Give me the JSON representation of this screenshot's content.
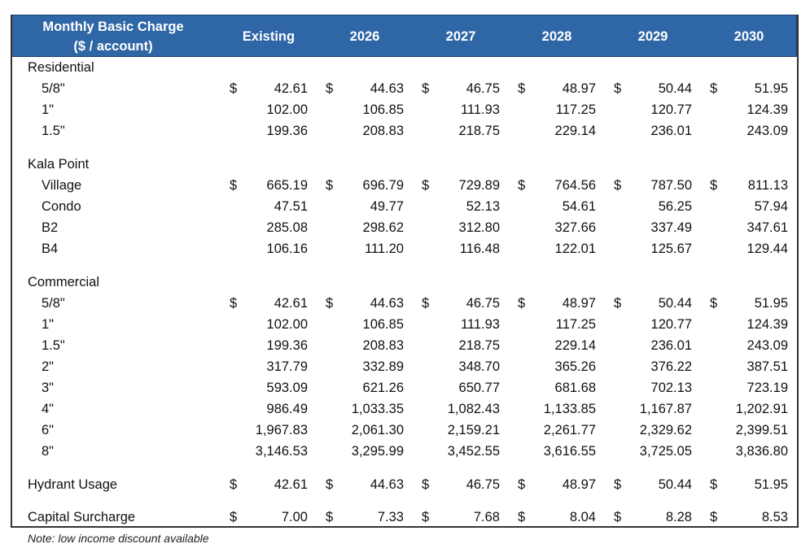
{
  "header": {
    "title_line1": "Monthly Basic Charge",
    "title_line2": "($ / account)",
    "columns": [
      "Existing",
      "2026",
      "2027",
      "2028",
      "2029",
      "2030"
    ]
  },
  "sections": [
    {
      "title": "Residential",
      "rows": [
        {
          "label": "5/8\"",
          "currency": "$",
          "values": [
            "42.61",
            "44.63",
            "46.75",
            "48.97",
            "50.44",
            "51.95"
          ]
        },
        {
          "label": "1\"",
          "currency": "",
          "values": [
            "102.00",
            "106.85",
            "111.93",
            "117.25",
            "120.77",
            "124.39"
          ]
        },
        {
          "label": "1.5\"",
          "currency": "",
          "values": [
            "199.36",
            "208.83",
            "218.75",
            "229.14",
            "236.01",
            "243.09"
          ]
        }
      ]
    },
    {
      "title": "Kala Point",
      "rows": [
        {
          "label": "Village",
          "currency": "$",
          "values": [
            "665.19",
            "696.79",
            "729.89",
            "764.56",
            "787.50",
            "811.13"
          ]
        },
        {
          "label": "Condo",
          "currency": "",
          "values": [
            "47.51",
            "49.77",
            "52.13",
            "54.61",
            "56.25",
            "57.94"
          ]
        },
        {
          "label": "B2",
          "currency": "",
          "values": [
            "285.08",
            "298.62",
            "312.80",
            "327.66",
            "337.49",
            "347.61"
          ]
        },
        {
          "label": "B4",
          "currency": "",
          "values": [
            "106.16",
            "111.20",
            "116.48",
            "122.01",
            "125.67",
            "129.44"
          ]
        }
      ]
    },
    {
      "title": "Commercial",
      "rows": [
        {
          "label": "5/8\"",
          "currency": "$",
          "values": [
            "42.61",
            "44.63",
            "46.75",
            "48.97",
            "50.44",
            "51.95"
          ]
        },
        {
          "label": "1\"",
          "currency": "",
          "values": [
            "102.00",
            "106.85",
            "111.93",
            "117.25",
            "120.77",
            "124.39"
          ]
        },
        {
          "label": "1.5\"",
          "currency": "",
          "values": [
            "199.36",
            "208.83",
            "218.75",
            "229.14",
            "236.01",
            "243.09"
          ]
        },
        {
          "label": "2\"",
          "currency": "",
          "values": [
            "317.79",
            "332.89",
            "348.70",
            "365.26",
            "376.22",
            "387.51"
          ]
        },
        {
          "label": "3\"",
          "currency": "",
          "values": [
            "593.09",
            "621.26",
            "650.77",
            "681.68",
            "702.13",
            "723.19"
          ]
        },
        {
          "label": "4\"",
          "currency": "",
          "values": [
            "986.49",
            "1,033.35",
            "1,082.43",
            "1,133.85",
            "1,167.87",
            "1,202.91"
          ]
        },
        {
          "label": "6\"",
          "currency": "",
          "values": [
            "1,967.83",
            "2,061.30",
            "2,159.21",
            "2,261.77",
            "2,329.62",
            "2,399.51"
          ]
        },
        {
          "label": "8\"",
          "currency": "",
          "values": [
            "3,146.53",
            "3,295.99",
            "3,452.55",
            "3,616.55",
            "3,725.05",
            "3,836.80"
          ]
        }
      ]
    }
  ],
  "totals": [
    {
      "label": "Hydrant Usage",
      "currency": "$",
      "values": [
        "42.61",
        "44.63",
        "46.75",
        "48.97",
        "50.44",
        "51.95"
      ]
    },
    {
      "label": "Capital Surcharge",
      "currency": "$",
      "values": [
        "7.00",
        "7.33",
        "7.68",
        "8.04",
        "8.28",
        "8.53"
      ]
    }
  ],
  "note": "Note: low income discount available",
  "colors": {
    "header_bg": "#2f66a6",
    "header_text": "#ffffff"
  }
}
